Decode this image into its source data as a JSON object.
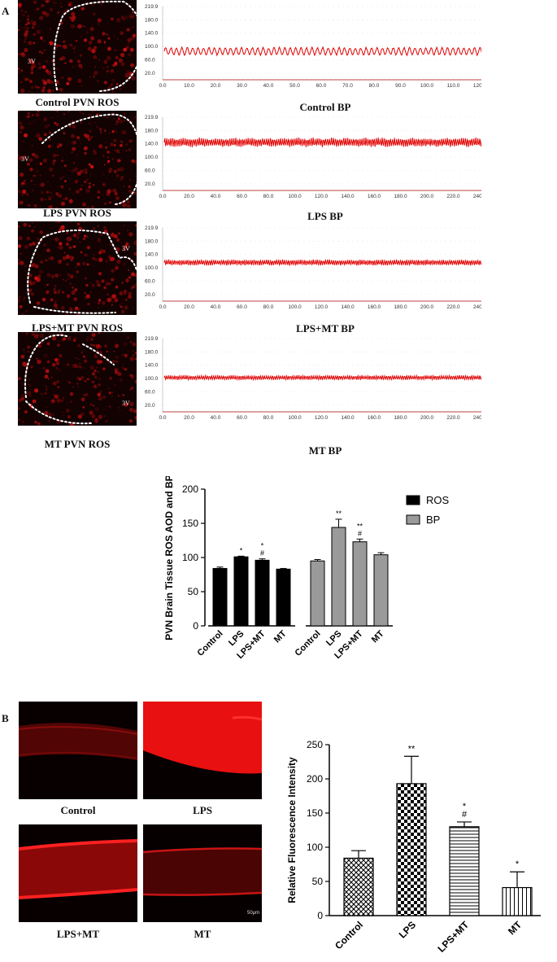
{
  "panel_a": {
    "letter": "A",
    "rows": [
      {
        "image_caption": "Control PVN ROS",
        "trace_caption": "Control BP",
        "label_3v": "3V",
        "y_ticks": [
          "219.9",
          "180.0",
          "140.0",
          "100.0",
          "60.0",
          "20.0"
        ],
        "x_ticks": [
          "0.0",
          "10.0",
          "20.0",
          "30.0",
          "40.0",
          "50.0",
          "60.0",
          "70.0",
          "80.0",
          "90.0",
          "100.0",
          "110.0",
          "120.0"
        ],
        "x_unit": "s",
        "trace_center": 90,
        "trace_amp": 12
      },
      {
        "image_caption": "LPS PVN ROS",
        "trace_caption": "LPS BP",
        "label_3v": "3V",
        "y_ticks": [
          "219.9",
          "180.0",
          "140.0",
          "100.0",
          "60.0",
          "20.0"
        ],
        "x_ticks": [
          "0.0",
          "20.0",
          "40.0",
          "60.0",
          "80.0",
          "100.0",
          "120.0",
          "140.0",
          "160.0",
          "180.0",
          "200.0",
          "220.0",
          "240.0"
        ],
        "x_unit": "s",
        "trace_center": 152,
        "trace_amp": 14
      },
      {
        "image_caption": "LPS+MT PVN ROS",
        "trace_caption": "LPS+MT BP",
        "label_3v": "3V",
        "y_ticks": [
          "219.9",
          "180.0",
          "140.0",
          "100.0",
          "60.0",
          "20.0"
        ],
        "x_ticks": [
          "0.0",
          "20.0",
          "40.0",
          "60.0",
          "80.0",
          "100.0",
          "120.0",
          "140.0",
          "160.0",
          "180.0",
          "200.0",
          "220.0",
          "240.0"
        ],
        "x_unit": "s",
        "trace_center": 122,
        "trace_amp": 9
      },
      {
        "image_caption": "MT PVN ROS",
        "trace_caption": "MT BP",
        "label_3v": "3V",
        "y_ticks": [
          "219.9",
          "180.0",
          "140.0",
          "100.0",
          "60.0",
          "20.0"
        ],
        "x_ticks": [
          "0.0",
          "20.0",
          "40.0",
          "60.0",
          "80.0",
          "100.0",
          "120.0",
          "140.0",
          "160.0",
          "180.0",
          "200.0",
          "220.0",
          "240.0"
        ],
        "x_unit": "s",
        "trace_center": 108,
        "trace_amp": 7
      }
    ]
  },
  "panel_b": {
    "letter": "B",
    "image_captions": [
      "Control",
      "LPS",
      "LPS+MT",
      "MT"
    ],
    "scale_bar": "50μm"
  },
  "colors": {
    "ros": "#000000",
    "bp": "#9a9a9a",
    "trace": "#e00000",
    "tissue": "#d01818"
  },
  "chart_data": [
    {
      "type": "bar",
      "ylabel": "PVN Brain Tissue ROS AOD and BP",
      "ylim": [
        0,
        200
      ],
      "yticks": [
        0,
        50,
        100,
        150,
        200
      ],
      "legend": {
        "placement": "right",
        "entries": [
          "ROS",
          "BP"
        ]
      },
      "groups": [
        {
          "name": "ROS",
          "categories": [
            "Control",
            "LPS",
            "LPS+MT",
            "MT"
          ],
          "values": [
            84,
            101,
            96,
            83
          ],
          "errors": [
            2,
            1,
            2,
            1
          ],
          "annotations": [
            "",
            "*",
            "*\n#",
            ""
          ]
        },
        {
          "name": "BP",
          "categories": [
            "Control",
            "LPS",
            "LPS+MT",
            "MT"
          ],
          "values": [
            95,
            144,
            123,
            104
          ],
          "errors": [
            2,
            12,
            4,
            3
          ],
          "annotations": [
            "",
            "**",
            "**\n#",
            ""
          ]
        }
      ]
    },
    {
      "type": "bar",
      "ylabel": "Relative Fluorescence Intensity",
      "ylim": [
        0,
        250
      ],
      "yticks": [
        0,
        50,
        100,
        150,
        200,
        250
      ],
      "categories": [
        "Control",
        "LPS",
        "LPS+MT",
        "MT"
      ],
      "values": [
        84,
        193,
        130,
        41
      ],
      "errors": [
        11,
        40,
        7,
        23
      ],
      "patterns": [
        "crosshatch",
        "checker",
        "horizontal",
        "vertical"
      ],
      "annotations": [
        "",
        "**",
        "*\n#",
        "*"
      ]
    }
  ]
}
